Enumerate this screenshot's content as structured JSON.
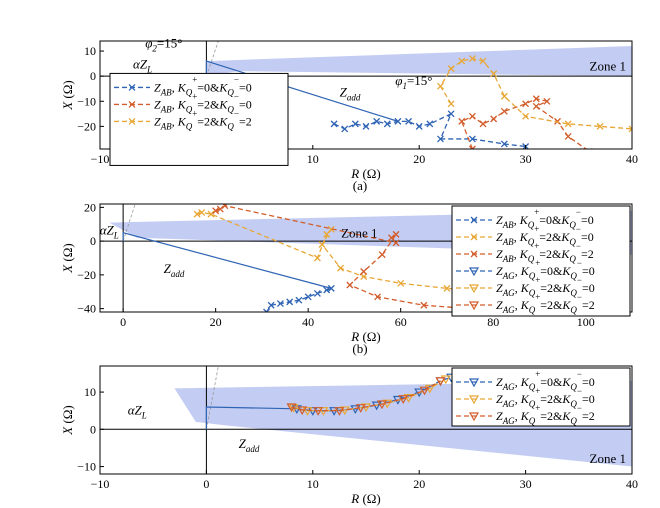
{
  "chart_data": [
    {
      "type": "scatter",
      "caption": "(a)",
      "xlabel": "R (Ω)",
      "ylabel": "X (Ω)",
      "xlim": [
        -10,
        40
      ],
      "ylim": [
        -29,
        14
      ],
      "xticks": [
        "−10",
        "0",
        "10",
        "20",
        "30",
        "40"
      ],
      "yticks": [
        "10",
        "0",
        "−10",
        "−20"
      ],
      "zone_label": "Zone 1",
      "zone_polygon": [
        [
          0,
          6
        ],
        [
          40,
          12
        ],
        [
          40,
          0
        ],
        [
          3,
          2
        ],
        [
          0,
          0
        ]
      ],
      "annotations": [
        {
          "text": "φ2=15°",
          "x": -4,
          "y": 11.5
        },
        {
          "text": "αZL",
          "x": -6,
          "y": 3
        },
        {
          "text": "φ1=15°",
          "x": 19.5,
          "y": -3.5
        },
        {
          "text": "Zadd",
          "x": 13.5,
          "y": -8
        }
      ],
      "impedance_line": [
        [
          0,
          0
        ],
        [
          0,
          6
        ],
        [
          18,
          -18
        ]
      ],
      "legend_position": "left",
      "series": [
        {
          "name": "ZAB, KQ+=0&KQ−=0",
          "color": "#2f64b4",
          "marker": "x",
          "points": [
            [
              12,
              -19
            ],
            [
              13,
              -21
            ],
            [
              14,
              -19
            ],
            [
              15,
              -20
            ],
            [
              16,
              -18
            ],
            [
              17,
              -19
            ],
            [
              18,
              -18
            ],
            [
              19,
              -18
            ],
            [
              20,
              -20
            ],
            [
              21,
              -19
            ],
            [
              23,
              -15
            ],
            [
              22,
              -25
            ],
            [
              25,
              -25
            ],
            [
              28,
              -27
            ],
            [
              30,
              -28
            ]
          ]
        },
        {
          "name": "ZAB, KQ+=2&KQ−=0",
          "color": "#d35d2b",
          "marker": "x",
          "points": [
            [
              25,
              -29
            ],
            [
              24,
              -18
            ],
            [
              25,
              -16
            ],
            [
              26,
              -19
            ],
            [
              27,
              -17
            ],
            [
              28,
              -14
            ],
            [
              30,
              -11
            ],
            [
              31,
              -9
            ],
            [
              32,
              -10
            ],
            [
              31,
              -12
            ],
            [
              33,
              -18
            ],
            [
              34,
              -24
            ],
            [
              36,
              -30
            ]
          ]
        },
        {
          "name": "ZAB, KQ+=2&KQ−=2",
          "color": "#e8a736",
          "marker": "x",
          "points": [
            [
              23,
              -11
            ],
            [
              22,
              -4
            ],
            [
              23,
              3
            ],
            [
              24,
              6
            ],
            [
              25,
              7
            ],
            [
              26,
              6
            ],
            [
              27,
              1
            ],
            [
              28,
              -8
            ],
            [
              30,
              -16
            ],
            [
              34,
              -19
            ],
            [
              37,
              -20
            ],
            [
              40,
              -21
            ]
          ]
        }
      ]
    },
    {
      "type": "scatter",
      "caption": "(b)",
      "xlabel": "R (Ω)",
      "ylabel": "X (Ω)",
      "xlim": [
        -5,
        110
      ],
      "ylim": [
        -42,
        22
      ],
      "xticks": [
        "0",
        "20",
        "40",
        "60",
        "80",
        "100"
      ],
      "yticks": [
        "20",
        "0",
        "−20",
        "−40"
      ],
      "zone_label": "Zone 1",
      "zone_polygon": [
        [
          -3,
          11
        ],
        [
          110,
          18
        ],
        [
          110,
          -8
        ],
        [
          3,
          2
        ]
      ],
      "annotations": [
        {
          "text": "αZL",
          "x": -3,
          "y": 4
        },
        {
          "text": "Zadd",
          "x": 11,
          "y": -19
        }
      ],
      "impedance_line": [
        [
          0,
          0
        ],
        [
          0,
          5
        ],
        [
          45,
          -28
        ]
      ],
      "legend_position": "right",
      "series": [
        {
          "name": "ZAB, KQ+=0&KQ−=0",
          "color": "#2f64b4",
          "marker": "x",
          "points": [
            [
              31,
              -42
            ],
            [
              32,
              -38
            ],
            [
              34,
              -37
            ],
            [
              36,
              -36
            ],
            [
              38,
              -35
            ],
            [
              40,
              -33
            ],
            [
              42,
              -31
            ],
            [
              44,
              -29
            ],
            [
              45,
              -28
            ]
          ]
        },
        {
          "name": "ZAB, KQ+=2&KQ−=0",
          "color": "#e8a736",
          "marker": "x",
          "points": [
            [
              16,
              16
            ],
            [
              17,
              17
            ],
            [
              19,
              16
            ],
            [
              42,
              -10
            ],
            [
              44,
              4
            ],
            [
              45,
              7
            ],
            [
              43,
              -2
            ],
            [
              47,
              -16
            ],
            [
              52,
              -21
            ],
            [
              60,
              -25
            ],
            [
              70,
              -28
            ],
            [
              80,
              -30
            ],
            [
              95,
              -32
            ],
            [
              100,
              -34
            ]
          ]
        },
        {
          "name": "ZAB, KQ+=2&KQ−=2",
          "color": "#d35d2b",
          "marker": "x",
          "points": [
            [
              20,
              18
            ],
            [
              21,
              19
            ],
            [
              22,
              21
            ],
            [
              59,
              -1
            ],
            [
              58,
              2
            ],
            [
              59,
              4
            ],
            [
              56,
              -8
            ],
            [
              52,
              -18
            ],
            [
              49,
              -26
            ],
            [
              55,
              -33
            ],
            [
              65,
              -38
            ],
            [
              75,
              -40
            ],
            [
              90,
              -42
            ]
          ]
        },
        {
          "name": "ZAG, KQ+=0&KQ−=0",
          "color": "#2f64b4",
          "marker": "triangle",
          "points": []
        },
        {
          "name": "ZAG, KQ+=2&KQ−=0",
          "color": "#e8a736",
          "marker": "triangle",
          "points": []
        },
        {
          "name": "ZAG, KQ+=2&KQ−=2",
          "color": "#d35d2b",
          "marker": "triangle",
          "points": []
        }
      ]
    },
    {
      "type": "scatter",
      "caption": "",
      "xlabel": "R (Ω)",
      "ylabel": "X (Ω)",
      "xlim": [
        -10,
        40
      ],
      "ylim": [
        -12,
        17
      ],
      "xticks": [
        "−10",
        "0",
        "10",
        "20",
        "30",
        "40"
      ],
      "yticks": [
        "10",
        "0",
        "−10"
      ],
      "zone_label": "Zone 1",
      "zone_polygon": [
        [
          -3,
          11
        ],
        [
          40,
          13
        ],
        [
          40,
          -10
        ],
        [
          2,
          1
        ],
        [
          -1,
          2
        ]
      ],
      "annotations": [
        {
          "text": "αZL",
          "x": -6.5,
          "y": 4
        },
        {
          "text": "Zadd",
          "x": 4,
          "y": -5
        }
      ],
      "impedance_line": [
        [
          0,
          0
        ],
        [
          0,
          6
        ],
        [
          8.5,
          5.5
        ]
      ],
      "legend_position": "right",
      "series": [
        {
          "name": "ZAG, KQ+=0&KQ−=0",
          "color": "#2f64b4",
          "marker": "triangle",
          "points": [
            [
              8.5,
              5.5
            ],
            [
              10,
              5
            ],
            [
              12,
              5
            ],
            [
              14,
              5.5
            ],
            [
              16,
              6.5
            ],
            [
              18,
              8
            ],
            [
              20,
              10
            ],
            [
              22,
              13
            ],
            [
              23,
              14
            ]
          ]
        },
        {
          "name": "ZAG, KQ+=2&KQ−=0",
          "color": "#e8a736",
          "marker": "triangle",
          "points": [
            [
              8.2,
              5.8
            ],
            [
              9.5,
              5
            ],
            [
              11,
              5
            ],
            [
              13,
              5.2
            ],
            [
              15,
              6
            ],
            [
              17,
              7
            ],
            [
              19,
              8.5
            ],
            [
              21,
              11
            ],
            [
              22.5,
              13.5
            ]
          ]
        },
        {
          "name": "ZAG, KQ+=2&KQ−=2",
          "color": "#d35d2b",
          "marker": "triangle",
          "points": [
            [
              8,
              6
            ],
            [
              9,
              5.2
            ],
            [
              10.5,
              5
            ],
            [
              12.5,
              5
            ],
            [
              14.5,
              5.8
            ],
            [
              16.5,
              6.8
            ],
            [
              18.5,
              8.2
            ],
            [
              20.5,
              10.5
            ],
            [
              22,
              13
            ]
          ]
        }
      ]
    }
  ]
}
